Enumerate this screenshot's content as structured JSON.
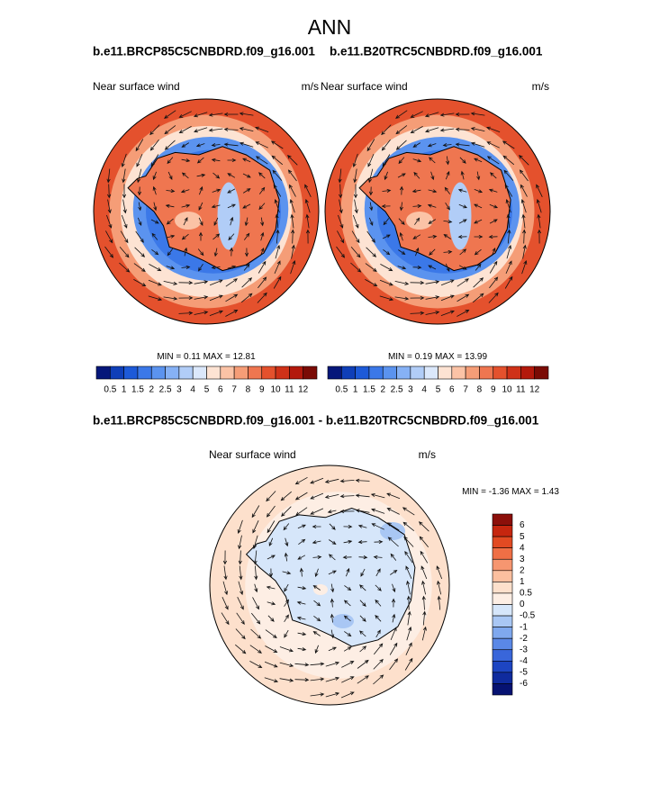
{
  "title": "ANN",
  "panels": [
    {
      "case": "b.e11.BRCP85C5CNBDRD.f09_g16.001",
      "field": "Near surface wind",
      "units": "m/s",
      "min_label": "MIN =",
      "min": 0.11,
      "max_label": "MAX =",
      "max": 12.81
    },
    {
      "case": "b.e11.B20TRC5CNBDRD.f09_g16.001",
      "field": "Near surface wind",
      "units": "m/s",
      "min_label": "MIN =",
      "min": 0.19,
      "max_label": "MAX =",
      "max": 13.99
    }
  ],
  "colorbar": {
    "labels": [
      0.5,
      1,
      1.5,
      2,
      2.5,
      3,
      4,
      5,
      6,
      7,
      8,
      9,
      10,
      11,
      12
    ],
    "colors": [
      "#06177a",
      "#0f3fb8",
      "#1d5ad8",
      "#3b78e8",
      "#5b93ef",
      "#86b1f5",
      "#b1cdf7",
      "#dbe8fb",
      "#fde3d3",
      "#fbc3a6",
      "#f59d77",
      "#ef7650",
      "#e4512d",
      "#cf3118",
      "#b3190c",
      "#7a0b05"
    ]
  },
  "difference": {
    "title": "b.e11.BRCP85C5CNBDRD.f09_g16.001 - b.e11.B20TRC5CNBDRD.f09_g16.001",
    "field": "Near surface wind",
    "units": "m/s",
    "min_label": "MIN =",
    "min": -1.36,
    "max_label": "MAX =",
    "max": 1.43,
    "colorbar": {
      "labels": [
        6,
        5,
        4,
        3,
        2,
        1,
        0.5,
        0,
        -0.5,
        -1,
        -2,
        -3,
        -4,
        -5,
        -6
      ],
      "colors": [
        "#8c0f0a",
        "#c6260f",
        "#e24a22",
        "#ef6f45",
        "#f69670",
        "#fbbf9f",
        "#fde0cc",
        "#fdeee4",
        "#d6e6fa",
        "#a9c7f4",
        "#7fa8ee",
        "#5a88e6",
        "#3966da",
        "#1d45c2",
        "#0f2b9e",
        "#061272"
      ]
    }
  }
}
